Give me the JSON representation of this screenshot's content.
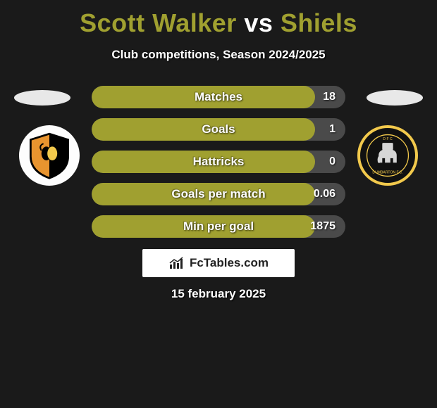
{
  "title": {
    "player1": "Scott Walker",
    "vs": "vs",
    "player2": "Shiels",
    "color1": "#a0a030",
    "color_vs": "#ffffff",
    "color2": "#a0a030"
  },
  "subtitle": "Club competitions, Season 2024/2025",
  "stats_style": {
    "row_bg": "#4a4a4a",
    "fill_color": "#a0a030",
    "fill_pct": 88
  },
  "stats": [
    {
      "label": "Matches",
      "value": "18"
    },
    {
      "label": "Goals",
      "value": "1"
    },
    {
      "label": "Hattricks",
      "value": "0"
    },
    {
      "label": "Goals per match",
      "value": "0.06"
    },
    {
      "label": "Min per goal",
      "value": "1875"
    }
  ],
  "brand": "FcTables.com",
  "date": "15 february 2025",
  "badges": {
    "left": {
      "shield_fill": "#e8942f",
      "shield_stroke": "#000000",
      "name": "alloa-athletic-badge"
    },
    "right": {
      "ring": "#f2c94c",
      "inner": "#111111",
      "elephant": "#d6d6d6",
      "name": "dumbarton-badge"
    }
  }
}
